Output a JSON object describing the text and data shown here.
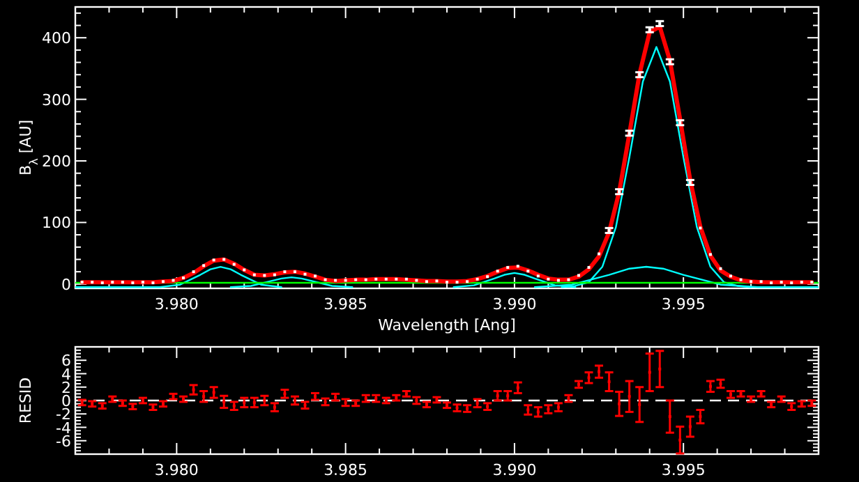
{
  "chart_data": [
    {
      "type": "line",
      "xlabel": "Wavelength [Ang]",
      "ylabel": "B$_{λ}$ [AU]",
      "xlim": [
        3.977,
        3.999
      ],
      "ylim": [
        -7,
        450
      ],
      "xticks": [
        {
          "value": 3.978,
          "label": null
        },
        {
          "value": 3.979,
          "label": null
        },
        {
          "value": 3.98,
          "label": "3.980"
        },
        {
          "value": 3.981,
          "label": null
        },
        {
          "value": 3.982,
          "label": null
        },
        {
          "value": 3.983,
          "label": null
        },
        {
          "value": 3.984,
          "label": null
        },
        {
          "value": 3.985,
          "label": "3.985"
        },
        {
          "value": 3.986,
          "label": null
        },
        {
          "value": 3.987,
          "label": null
        },
        {
          "value": 3.988,
          "label": null
        },
        {
          "value": 3.989,
          "label": null
        },
        {
          "value": 3.99,
          "label": "3.990"
        },
        {
          "value": 3.991,
          "label": null
        },
        {
          "value": 3.992,
          "label": null
        },
        {
          "value": 3.993,
          "label": null
        },
        {
          "value": 3.994,
          "label": null
        },
        {
          "value": 3.995,
          "label": "3.995"
        },
        {
          "value": 3.996,
          "label": null
        },
        {
          "value": 3.997,
          "label": null
        },
        {
          "value": 3.998,
          "label": null
        }
      ],
      "yticks": [
        0,
        {
          "value": 20,
          "label": null
        },
        {
          "value": 40,
          "label": null
        },
        {
          "value": 60,
          "label": null
        },
        {
          "value": 80,
          "label": null
        },
        100,
        {
          "value": 120,
          "label": null
        },
        {
          "value": 140,
          "label": null
        },
        {
          "value": 160,
          "label": null
        },
        {
          "value": 180,
          "label": null
        },
        200,
        {
          "value": 220,
          "label": null
        },
        {
          "value": 240,
          "label": null
        },
        {
          "value": 260,
          "label": null
        },
        {
          "value": 280,
          "label": null
        },
        300,
        {
          "value": 320,
          "label": null
        },
        {
          "value": 340,
          "label": null
        },
        {
          "value": 360,
          "label": null
        },
        {
          "value": 380,
          "label": null
        },
        400,
        {
          "value": 420,
          "label": null
        },
        {
          "value": 440,
          "label": null
        }
      ],
      "x": [
        3.9772,
        3.9775,
        3.9778,
        3.9781,
        3.9784,
        3.9787,
        3.979,
        3.9793,
        3.9796,
        3.9799,
        3.9802,
        3.9805,
        3.9808,
        3.9811,
        3.9814,
        3.9817,
        3.982,
        3.9823,
        3.9826,
        3.9829,
        3.9832,
        3.9835,
        3.9838,
        3.9841,
        3.9844,
        3.9847,
        3.985,
        3.9853,
        3.9856,
        3.9859,
        3.9862,
        3.9865,
        3.9868,
        3.9871,
        3.9874,
        3.9877,
        3.988,
        3.9883,
        3.9886,
        3.9889,
        3.9892,
        3.9895,
        3.9898,
        3.9901,
        3.9904,
        3.9907,
        3.991,
        3.9913,
        3.9916,
        3.9919,
        3.9922,
        3.9925,
        3.9928,
        3.9931,
        3.9934,
        3.9937,
        3.994,
        3.9943,
        3.9946,
        3.9949,
        3.9952,
        3.9955,
        3.9958,
        3.9961,
        3.9964,
        3.9967,
        3.997,
        3.9973,
        3.9976,
        3.9979,
        3.9982,
        3.9985,
        3.9988
      ],
      "series": [
        {
          "color": "#00ffff",
          "x": [
            3.9914,
            3.9918,
            3.9922,
            3.9926,
            3.993,
            3.9934,
            3.9938,
            3.9942,
            3.9946,
            3.995,
            3.9954,
            3.9958,
            3.9962,
            3.9966,
            3.997
          ],
          "values": [
            -5,
            -3,
            3,
            28,
            92,
            206,
            329,
            385,
            329,
            206,
            92,
            28,
            3,
            -3,
            -5
          ]
        },
        {
          "color": "#00ffff",
          "x": [
            3.9906,
            3.9917,
            3.9928,
            3.9934,
            3.9939,
            3.9944,
            3.995,
            3.9961,
            3.9972,
            3.999
          ],
          "values": [
            -5,
            -1,
            15,
            25,
            28,
            25,
            15,
            -1,
            -5,
            -5
          ]
        },
        {
          "color": "#00ffff",
          "x": [
            3.977,
            3.9795,
            3.9801,
            3.9807,
            3.981,
            3.9813,
            3.9816,
            3.9819,
            3.9825,
            3.9831
          ],
          "values": [
            -5,
            -5,
            -1,
            15,
            24,
            28,
            24,
            15,
            -1,
            -5
          ]
        },
        {
          "color": "#00ffff",
          "x": [
            3.9816,
            3.9822,
            3.9828,
            3.9831,
            3.9834,
            3.9837,
            3.984,
            3.9846,
            3.9852
          ],
          "values": [
            -5,
            -3,
            5,
            9,
            11,
            9,
            5,
            -3,
            -5
          ]
        },
        {
          "color": "#00ffff",
          "x": [
            3.9882,
            3.9888,
            3.9894,
            3.9897,
            3.99,
            3.9903,
            3.9906,
            3.9912,
            3.9918
          ],
          "values": [
            -5,
            -2,
            9,
            15,
            18,
            15,
            9,
            -2,
            -5
          ]
        },
        {
          "color": "#00ff00",
          "x": [
            3.977,
            3.999
          ],
          "values": [
            2,
            2
          ]
        },
        {
          "color": "#ff0000",
          "values": [
            3,
            3,
            3,
            3,
            3,
            3,
            3,
            3,
            4,
            5,
            10,
            18,
            29,
            38,
            40,
            33,
            23,
            15,
            14,
            16,
            19,
            20,
            17,
            12,
            7,
            5,
            6,
            7,
            7,
            8,
            8,
            8,
            7,
            6,
            5,
            5,
            4,
            4,
            5,
            8,
            13,
            20,
            26,
            27,
            22,
            15,
            9,
            7,
            7,
            12,
            24,
            45,
            84,
            150,
            244,
            341,
            409,
            418,
            363,
            268,
            169,
            93,
            46,
            22,
            12,
            6,
            4,
            3,
            3,
            3,
            3,
            3,
            3
          ]
        },
        {
          "type": "scatter",
          "color": "#ffffff",
          "values": [
            3,
            3,
            2,
            3,
            3,
            2,
            3,
            2,
            4,
            6,
            10,
            20,
            30,
            39,
            40,
            32,
            23,
            15,
            14,
            15,
            20,
            20,
            16,
            13,
            7,
            6,
            6,
            7,
            7,
            8,
            8,
            8,
            8,
            6,
            4,
            5,
            3,
            3,
            4,
            8,
            12,
            21,
            27,
            29,
            21,
            13,
            8,
            6,
            7,
            14,
            27,
            49,
            87,
            150,
            245,
            340,
            413,
            423,
            361,
            262,
            165,
            91,
            48,
            25,
            13,
            7,
            4,
            4,
            2,
            3,
            2,
            3,
            3
          ],
          "errors": [
            null,
            null,
            null,
            null,
            null,
            null,
            null,
            null,
            null,
            null,
            null,
            null,
            null,
            null,
            null,
            null,
            null,
            null,
            null,
            null,
            null,
            null,
            null,
            null,
            null,
            null,
            null,
            null,
            null,
            null,
            null,
            null,
            null,
            null,
            null,
            null,
            null,
            null,
            null,
            null,
            null,
            null,
            null,
            null,
            null,
            null,
            null,
            null,
            null,
            null,
            null,
            null,
            4,
            4,
            4,
            4,
            4,
            4,
            4,
            4,
            4,
            null,
            null,
            null,
            null,
            null,
            null,
            null,
            null,
            null,
            null,
            null,
            null
          ]
        }
      ]
    },
    {
      "type": "scatter",
      "ylabel": "RESID",
      "xlim": [
        3.977,
        3.999
      ],
      "ylim": [
        -8,
        8
      ],
      "xticks": [
        {
          "value": 3.978,
          "label": null
        },
        {
          "value": 3.979,
          "label": null
        },
        {
          "value": 3.98,
          "label": "3.980"
        },
        {
          "value": 3.981,
          "label": null
        },
        {
          "value": 3.982,
          "label": null
        },
        {
          "value": 3.983,
          "label": null
        },
        {
          "value": 3.984,
          "label": null
        },
        {
          "value": 3.985,
          "label": "3.985"
        },
        {
          "value": 3.986,
          "label": null
        },
        {
          "value": 3.987,
          "label": null
        },
        {
          "value": 3.988,
          "label": null
        },
        {
          "value": 3.989,
          "label": null
        },
        {
          "value": 3.99,
          "label": "3.990"
        },
        {
          "value": 3.991,
          "label": null
        },
        {
          "value": 3.992,
          "label": null
        },
        {
          "value": 3.993,
          "label": null
        },
        {
          "value": 3.994,
          "label": null
        },
        {
          "value": 3.995,
          "label": "3.995"
        },
        {
          "value": 3.996,
          "label": null
        },
        {
          "value": 3.997,
          "label": null
        },
        {
          "value": 3.998,
          "label": null
        }
      ],
      "yticks": [
        {
          "value": -7.5,
          "label": null
        },
        {
          "value": -7,
          "label": null
        },
        {
          "value": -6.5,
          "label": null
        },
        -6,
        {
          "value": -5.5,
          "label": null
        },
        {
          "value": -5,
          "label": null
        },
        {
          "value": -4.5,
          "label": null
        },
        -4,
        {
          "value": -3.5,
          "label": null
        },
        {
          "value": -3,
          "label": null
        },
        {
          "value": -2.5,
          "label": null
        },
        -2,
        {
          "value": -1.5,
          "label": null
        },
        {
          "value": -1,
          "label": null
        },
        {
          "value": -0.5,
          "label": null
        },
        0,
        {
          "value": 0.5,
          "label": null
        },
        {
          "value": 1,
          "label": null
        },
        {
          "value": 1.5,
          "label": null
        },
        2,
        {
          "value": 2.5,
          "label": null
        },
        {
          "value": 3,
          "label": null
        },
        {
          "value": 3.5,
          "label": null
        },
        4,
        {
          "value": 4.5,
          "label": null
        },
        {
          "value": 5,
          "label": null
        },
        {
          "value": 5.5,
          "label": null
        },
        6,
        {
          "value": 6.5,
          "label": null
        },
        {
          "value": 7,
          "label": null
        },
        {
          "value": 7.5,
          "label": null
        }
      ],
      "x": [
        3.9772,
        3.9775,
        3.9778,
        3.9781,
        3.9784,
        3.9787,
        3.979,
        3.9793,
        3.9796,
        3.9799,
        3.9802,
        3.9805,
        3.9808,
        3.9811,
        3.9814,
        3.9817,
        3.982,
        3.9823,
        3.9826,
        3.9829,
        3.9832,
        3.9835,
        3.9838,
        3.9841,
        3.9844,
        3.9847,
        3.985,
        3.9853,
        3.9856,
        3.9859,
        3.9862,
        3.9865,
        3.9868,
        3.9871,
        3.9874,
        3.9877,
        3.988,
        3.9883,
        3.9886,
        3.9889,
        3.9892,
        3.9895,
        3.9898,
        3.9901,
        3.9904,
        3.9907,
        3.991,
        3.9913,
        3.9916,
        3.9919,
        3.9922,
        3.9925,
        3.9928,
        3.9931,
        3.9934,
        3.9937,
        3.994,
        3.9943,
        3.9946,
        3.9949,
        3.9952,
        3.9955,
        3.9958,
        3.9961,
        3.9964,
        3.9967,
        3.997,
        3.9973,
        3.9976,
        3.9979,
        3.9982,
        3.9985,
        3.9988
      ],
      "ref_lines": [
        {
          "axis": "y",
          "value": 0,
          "color": "#ffffff",
          "line_style": "dashed"
        }
      ],
      "series": [
        {
          "color": "#ff0000",
          "values": [
            -0.3,
            -0.5,
            -0.8,
            0.2,
            -0.4,
            -0.9,
            0,
            -1.0,
            -0.5,
            0.6,
            0.2,
            1.6,
            0.6,
            1.2,
            -0.2,
            -0.8,
            -0.3,
            -0.3,
            0,
            -1.0,
            1.0,
            0,
            -0.7,
            0.6,
            -0.2,
            0.5,
            -0.3,
            -0.4,
            0.3,
            0.3,
            0,
            0.4,
            1.0,
            0,
            -0.6,
            0.1,
            -0.7,
            -1.1,
            -1.2,
            -0.4,
            -0.9,
            0.7,
            0.7,
            1.9,
            -1.4,
            -1.7,
            -1.3,
            -1.0,
            0.3,
            2.4,
            3.4,
            4.3,
            2.8,
            -0.5,
            0.6,
            -0.6,
            4.2,
            4.7,
            -2.4,
            -5.9,
            -3.9,
            -2.4,
            2.1,
            2.5,
            0.9,
            1.0,
            0.2,
            1.0,
            -0.6,
            0.2,
            -0.9,
            -0.5,
            -0.4
          ],
          "errors": [
            0.4,
            0.4,
            0.4,
            0.4,
            0.4,
            0.4,
            0.4,
            0.4,
            0.4,
            0.4,
            0.4,
            0.7,
            0.8,
            0.8,
            0.9,
            0.6,
            0.7,
            0.7,
            0.7,
            0.6,
            0.6,
            0.6,
            0.5,
            0.5,
            0.5,
            0.5,
            0.5,
            0.4,
            0.5,
            0.5,
            0.4,
            0.4,
            0.4,
            0.5,
            0.4,
            0.4,
            0.4,
            0.5,
            0.5,
            0.6,
            0.5,
            0.7,
            0.7,
            0.8,
            0.7,
            0.7,
            0.6,
            0.6,
            0.5,
            0.5,
            0.8,
            0.9,
            1.4,
            1.8,
            2.3,
            2.6,
            2.8,
            2.7,
            2.4,
            2.0,
            1.5,
            1.0,
            0.8,
            0.6,
            0.5,
            0.4,
            0.4,
            0.4,
            0.4,
            0.4,
            0.5,
            0.4,
            0.4
          ]
        }
      ]
    }
  ]
}
